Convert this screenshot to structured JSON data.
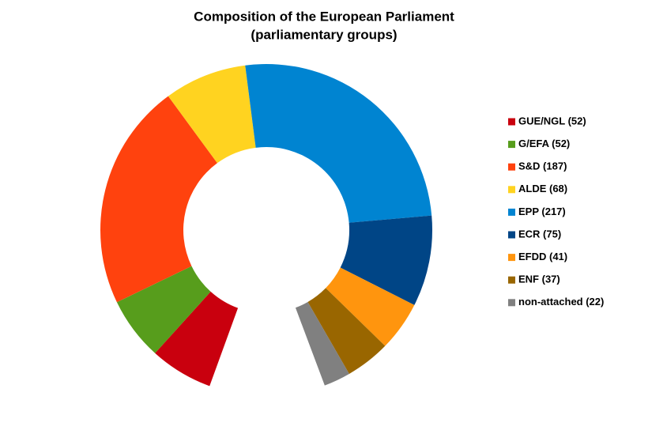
{
  "chart_data": {
    "type": "donut",
    "title": "Composition of the European Parliament",
    "subtitle": "(parliamentary groups)",
    "categories": [
      "GUE/NGL (52)",
      "G/EFA (52)",
      "S&D (187)",
      "ALDE (68)",
      "EPP (217)",
      "ECR (75)",
      "EFDD (41)",
      "ENF (37)",
      "non-attached (22)"
    ],
    "values": [
      52,
      52,
      187,
      68,
      217,
      75,
      41,
      37,
      22
    ],
    "colors": [
      "#c9000e",
      "#579d1c",
      "#ff420e",
      "#ffd320",
      "#0084d1",
      "#004586",
      "#ff950e",
      "#996600",
      "#808080"
    ],
    "legend": "right"
  }
}
